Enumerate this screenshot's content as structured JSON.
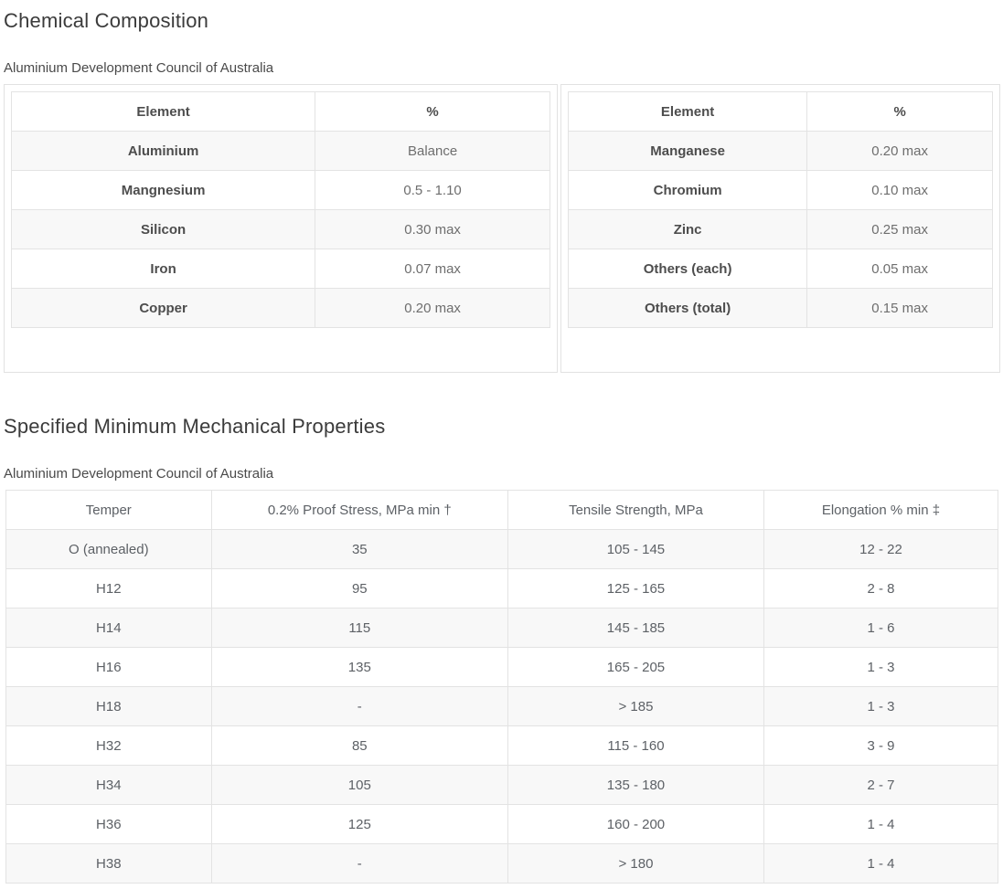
{
  "chemical": {
    "title": "Chemical Composition",
    "subtitle": "Aluminium Development Council of Australia",
    "left_table": {
      "headers": [
        "Element",
        "%"
      ],
      "rows": [
        [
          "Aluminium",
          "Balance"
        ],
        [
          "Mangnesium",
          "0.5 - 1.10"
        ],
        [
          "Silicon",
          "0.30 max"
        ],
        [
          "Iron",
          "0.07 max"
        ],
        [
          "Copper",
          "0.20 max"
        ]
      ]
    },
    "right_table": {
      "headers": [
        "Element",
        "%"
      ],
      "rows": [
        [
          "Manganese",
          "0.20 max"
        ],
        [
          "Chromium",
          "0.10 max"
        ],
        [
          "Zinc",
          "0.25 max"
        ],
        [
          "Others (each)",
          "0.05 max"
        ],
        [
          "Others (total)",
          "0.15 max"
        ]
      ]
    }
  },
  "mechanical": {
    "title": "Specified Minimum Mechanical Properties",
    "subtitle": "Aluminium Development Council of Australia",
    "table": {
      "headers": [
        "Temper",
        "0.2% Proof Stress, MPa min †",
        "Tensile Strength, MPa",
        "Elongation % min ‡"
      ],
      "rows": [
        [
          "O (annealed)",
          "35",
          "105 - 145",
          "12 - 22"
        ],
        [
          "H12",
          "95",
          "125 - 165",
          "2 - 8"
        ],
        [
          "H14",
          "115",
          "145 - 185",
          "1 - 6"
        ],
        [
          "H16",
          "135",
          "165 - 205",
          "1 - 3"
        ],
        [
          "H18",
          "-",
          "> 185",
          "1 - 3"
        ],
        [
          "H32",
          "85",
          "115 - 160",
          "3 - 9"
        ],
        [
          "H34",
          "105",
          "135 - 180",
          "2 - 7"
        ],
        [
          "H36",
          "125",
          "160 - 200",
          "1 - 4"
        ],
        [
          "H38",
          "-",
          "> 180",
          "1 - 4"
        ]
      ]
    }
  },
  "colors": {
    "heading_text": "#3b3b3b",
    "subtitle_text": "#4a4a4a",
    "bold_cell_text": "#4d4d4d",
    "value_cell_text": "#6e6e6e",
    "mech_cell_text": "#5d6166",
    "row_stripe": "#f8f8f8",
    "table_border": "#e3e3e3"
  }
}
